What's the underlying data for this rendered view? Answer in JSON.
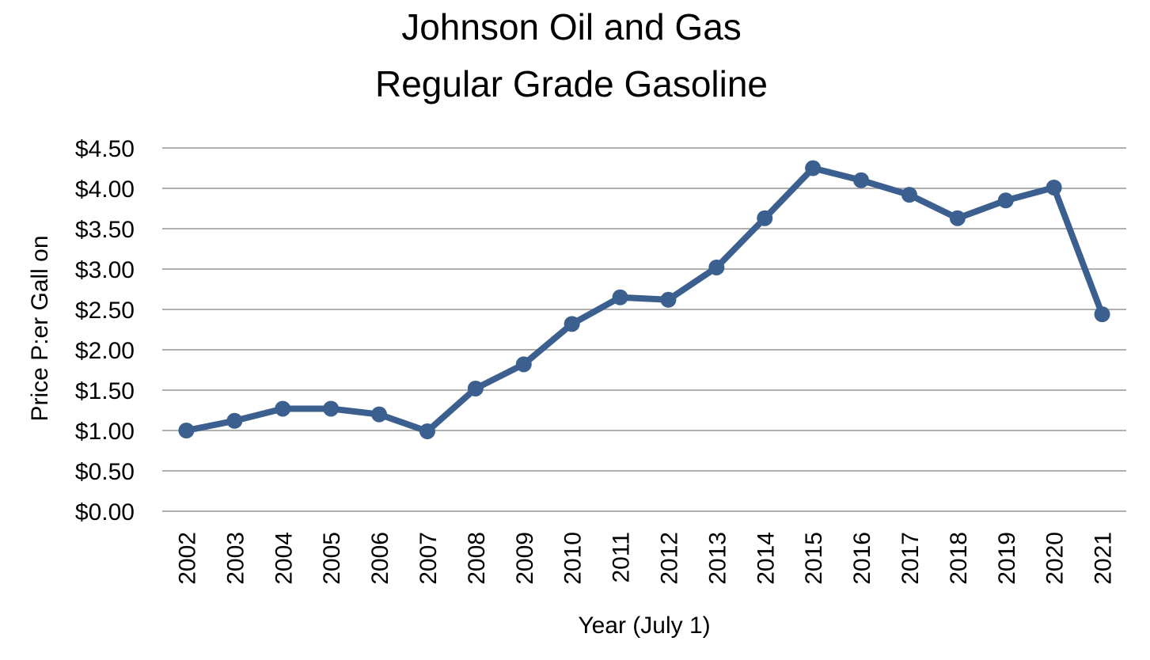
{
  "chart_data": {
    "type": "line",
    "title": [
      "Johnson Oil and Gas",
      "Regular Grade Gasoline"
    ],
    "xlabel": "Year (July 1)",
    "ylabel": "Price P:er  Gall on",
    "categories": [
      "2002",
      "2003",
      "2004",
      "2005",
      "2006",
      "2007",
      "2008",
      "2009",
      "2010",
      "2011",
      "2012",
      "2013",
      "2014",
      "2015",
      "2016",
      "2017",
      "2018",
      "2019",
      "2020",
      "2021"
    ],
    "series": [
      {
        "values": [
          1.0,
          1.12,
          1.27,
          1.27,
          1.2,
          0.99,
          1.52,
          1.82,
          2.32,
          2.65,
          2.62,
          3.02,
          3.63,
          4.25,
          4.1,
          3.92,
          3.63,
          3.85,
          4.01,
          2.44
        ]
      }
    ],
    "ylim": [
      0,
      4.5
    ],
    "ytick_values": [
      0,
      0.5,
      1.0,
      1.5,
      2.0,
      2.5,
      3.0,
      3.5,
      4.0,
      4.5
    ],
    "ytick_labels": [
      "$0.00",
      "$0.50",
      "$1.00",
      "$1.50",
      "$2.00",
      "$2.50",
      "$3.00",
      "$3.50",
      "$4.00",
      "$4.50"
    ],
    "grid": true,
    "legend": "none",
    "colors": {
      "line": "#3b5f8f",
      "grid": "#b0b0b0",
      "text": "#000000"
    }
  }
}
